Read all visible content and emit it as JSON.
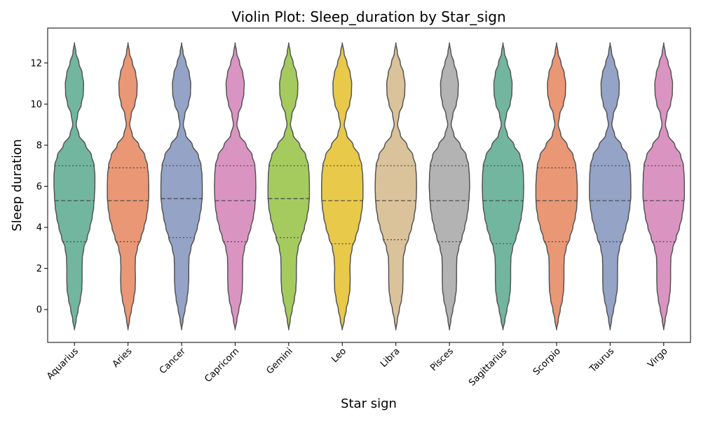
{
  "chart_data": {
    "type": "violin",
    "title": "Violin Plot: Sleep_duration by Star_sign",
    "xlabel": "Star sign",
    "ylabel": "Sleep duration",
    "ylim": [
      -1.6,
      13.7
    ],
    "yticks": [
      0,
      2,
      4,
      6,
      8,
      10,
      12
    ],
    "grid": false,
    "inner": "quartile",
    "edge_color": "#555555",
    "categories": [
      "Aquarius",
      "Aries",
      "Cancer",
      "Capricorn",
      "Gemini",
      "Leo",
      "Libra",
      "Pisces",
      "Sagittarius",
      "Scorpio",
      "Taurus",
      "Virgo"
    ],
    "colors": [
      "#72b6a0",
      "#ea9775",
      "#94a3c6",
      "#da94c2",
      "#a5cb5f",
      "#e8c94a",
      "#dac29b",
      "#b3b3b3",
      "#72b6a0",
      "#ea9775",
      "#94a3c6",
      "#da94c2"
    ],
    "density_y": [
      -1,
      -0.5,
      0,
      0.5,
      1,
      1.5,
      2,
      2.5,
      3,
      3.5,
      4,
      4.5,
      5,
      5.5,
      6,
      6.5,
      7,
      7.5,
      8,
      8.5,
      9,
      9.5,
      10,
      10.5,
      11,
      11.5,
      12,
      12.5,
      13
    ],
    "series": [
      {
        "name": "Aquarius",
        "min": -1,
        "max": 13,
        "q1": 3.3,
        "median": 5.3,
        "q3": 7.0,
        "widths": [
          0.0,
          0.07,
          0.15,
          0.24,
          0.3,
          0.31,
          0.31,
          0.32,
          0.38,
          0.52,
          0.63,
          0.72,
          0.78,
          0.81,
          0.83,
          0.83,
          0.8,
          0.69,
          0.45,
          0.18,
          0.07,
          0.13,
          0.28,
          0.36,
          0.37,
          0.31,
          0.18,
          0.06,
          0.0
        ]
      },
      {
        "name": "Aries",
        "min": -1,
        "max": 13,
        "q1": 3.3,
        "median": 5.3,
        "q3": 6.9,
        "widths": [
          0.0,
          0.06,
          0.14,
          0.23,
          0.29,
          0.3,
          0.29,
          0.3,
          0.38,
          0.53,
          0.65,
          0.75,
          0.81,
          0.84,
          0.84,
          0.83,
          0.79,
          0.68,
          0.44,
          0.17,
          0.07,
          0.13,
          0.28,
          0.36,
          0.37,
          0.31,
          0.18,
          0.06,
          0.0
        ]
      },
      {
        "name": "Cancer",
        "min": -1,
        "max": 13,
        "q1": 3.5,
        "median": 5.4,
        "q3": 7.0,
        "widths": [
          0.0,
          0.06,
          0.14,
          0.22,
          0.27,
          0.29,
          0.29,
          0.3,
          0.38,
          0.52,
          0.64,
          0.73,
          0.8,
          0.84,
          0.84,
          0.83,
          0.79,
          0.68,
          0.44,
          0.17,
          0.07,
          0.13,
          0.28,
          0.36,
          0.37,
          0.31,
          0.18,
          0.06,
          0.0
        ]
      },
      {
        "name": "Capricorn",
        "min": -1,
        "max": 13,
        "q1": 3.3,
        "median": 5.3,
        "q3": 7.0,
        "widths": [
          0.0,
          0.07,
          0.15,
          0.24,
          0.29,
          0.3,
          0.3,
          0.31,
          0.38,
          0.52,
          0.64,
          0.74,
          0.8,
          0.83,
          0.84,
          0.83,
          0.8,
          0.69,
          0.45,
          0.18,
          0.07,
          0.13,
          0.27,
          0.35,
          0.37,
          0.31,
          0.18,
          0.06,
          0.0
        ]
      },
      {
        "name": "Gemini",
        "min": -1,
        "max": 13,
        "q1": 3.5,
        "median": 5.4,
        "q3": 7.0,
        "widths": [
          0.0,
          0.06,
          0.14,
          0.23,
          0.29,
          0.31,
          0.31,
          0.32,
          0.38,
          0.51,
          0.64,
          0.74,
          0.81,
          0.84,
          0.84,
          0.83,
          0.8,
          0.69,
          0.45,
          0.18,
          0.07,
          0.13,
          0.28,
          0.36,
          0.37,
          0.31,
          0.18,
          0.06,
          0.0
        ]
      },
      {
        "name": "Leo",
        "min": -1,
        "max": 13,
        "q1": 3.2,
        "median": 5.3,
        "q3": 7.0,
        "widths": [
          0.0,
          0.08,
          0.16,
          0.25,
          0.31,
          0.32,
          0.31,
          0.33,
          0.4,
          0.54,
          0.66,
          0.75,
          0.81,
          0.84,
          0.84,
          0.83,
          0.79,
          0.68,
          0.44,
          0.18,
          0.08,
          0.15,
          0.3,
          0.37,
          0.38,
          0.32,
          0.19,
          0.07,
          0.0
        ]
      },
      {
        "name": "Libra",
        "min": -1,
        "max": 13,
        "q1": 3.4,
        "median": 5.3,
        "q3": 7.0,
        "widths": [
          0.0,
          0.06,
          0.14,
          0.23,
          0.28,
          0.29,
          0.29,
          0.3,
          0.38,
          0.52,
          0.64,
          0.74,
          0.8,
          0.83,
          0.84,
          0.83,
          0.8,
          0.69,
          0.45,
          0.18,
          0.07,
          0.13,
          0.28,
          0.36,
          0.37,
          0.31,
          0.18,
          0.06,
          0.0
        ]
      },
      {
        "name": "Pisces",
        "min": -1,
        "max": 13,
        "q1": 3.3,
        "median": 5.3,
        "q3": 7.0,
        "widths": [
          0.0,
          0.06,
          0.14,
          0.23,
          0.28,
          0.29,
          0.29,
          0.3,
          0.38,
          0.51,
          0.62,
          0.71,
          0.77,
          0.8,
          0.82,
          0.81,
          0.78,
          0.68,
          0.44,
          0.18,
          0.07,
          0.14,
          0.28,
          0.35,
          0.36,
          0.3,
          0.18,
          0.06,
          0.0
        ]
      },
      {
        "name": "Sagittarius",
        "min": -1,
        "max": 13,
        "q1": 3.2,
        "median": 5.3,
        "q3": 7.0,
        "widths": [
          0.0,
          0.08,
          0.16,
          0.25,
          0.3,
          0.31,
          0.31,
          0.32,
          0.39,
          0.53,
          0.65,
          0.74,
          0.8,
          0.83,
          0.84,
          0.83,
          0.8,
          0.69,
          0.45,
          0.18,
          0.07,
          0.14,
          0.29,
          0.36,
          0.37,
          0.31,
          0.18,
          0.06,
          0.0
        ]
      },
      {
        "name": "Scorpio",
        "min": -1,
        "max": 13,
        "q1": 3.3,
        "median": 5.3,
        "q3": 6.9,
        "widths": [
          0.0,
          0.07,
          0.15,
          0.24,
          0.29,
          0.3,
          0.3,
          0.31,
          0.39,
          0.54,
          0.66,
          0.76,
          0.82,
          0.84,
          0.84,
          0.82,
          0.78,
          0.67,
          0.43,
          0.17,
          0.07,
          0.13,
          0.28,
          0.36,
          0.37,
          0.31,
          0.18,
          0.06,
          0.0
        ]
      },
      {
        "name": "Taurus",
        "min": -1,
        "max": 13,
        "q1": 3.3,
        "median": 5.3,
        "q3": 7.0,
        "widths": [
          0.0,
          0.06,
          0.14,
          0.23,
          0.29,
          0.3,
          0.3,
          0.31,
          0.38,
          0.52,
          0.64,
          0.74,
          0.8,
          0.84,
          0.84,
          0.83,
          0.8,
          0.69,
          0.45,
          0.18,
          0.07,
          0.13,
          0.28,
          0.36,
          0.37,
          0.31,
          0.18,
          0.06,
          0.0
        ]
      },
      {
        "name": "Virgo",
        "min": -1,
        "max": 13,
        "q1": 3.3,
        "median": 5.3,
        "q3": 7.0,
        "widths": [
          0.0,
          0.06,
          0.14,
          0.22,
          0.27,
          0.28,
          0.28,
          0.29,
          0.37,
          0.51,
          0.64,
          0.74,
          0.8,
          0.84,
          0.84,
          0.83,
          0.8,
          0.69,
          0.45,
          0.18,
          0.07,
          0.13,
          0.28,
          0.35,
          0.36,
          0.3,
          0.18,
          0.06,
          0.0
        ]
      }
    ]
  }
}
